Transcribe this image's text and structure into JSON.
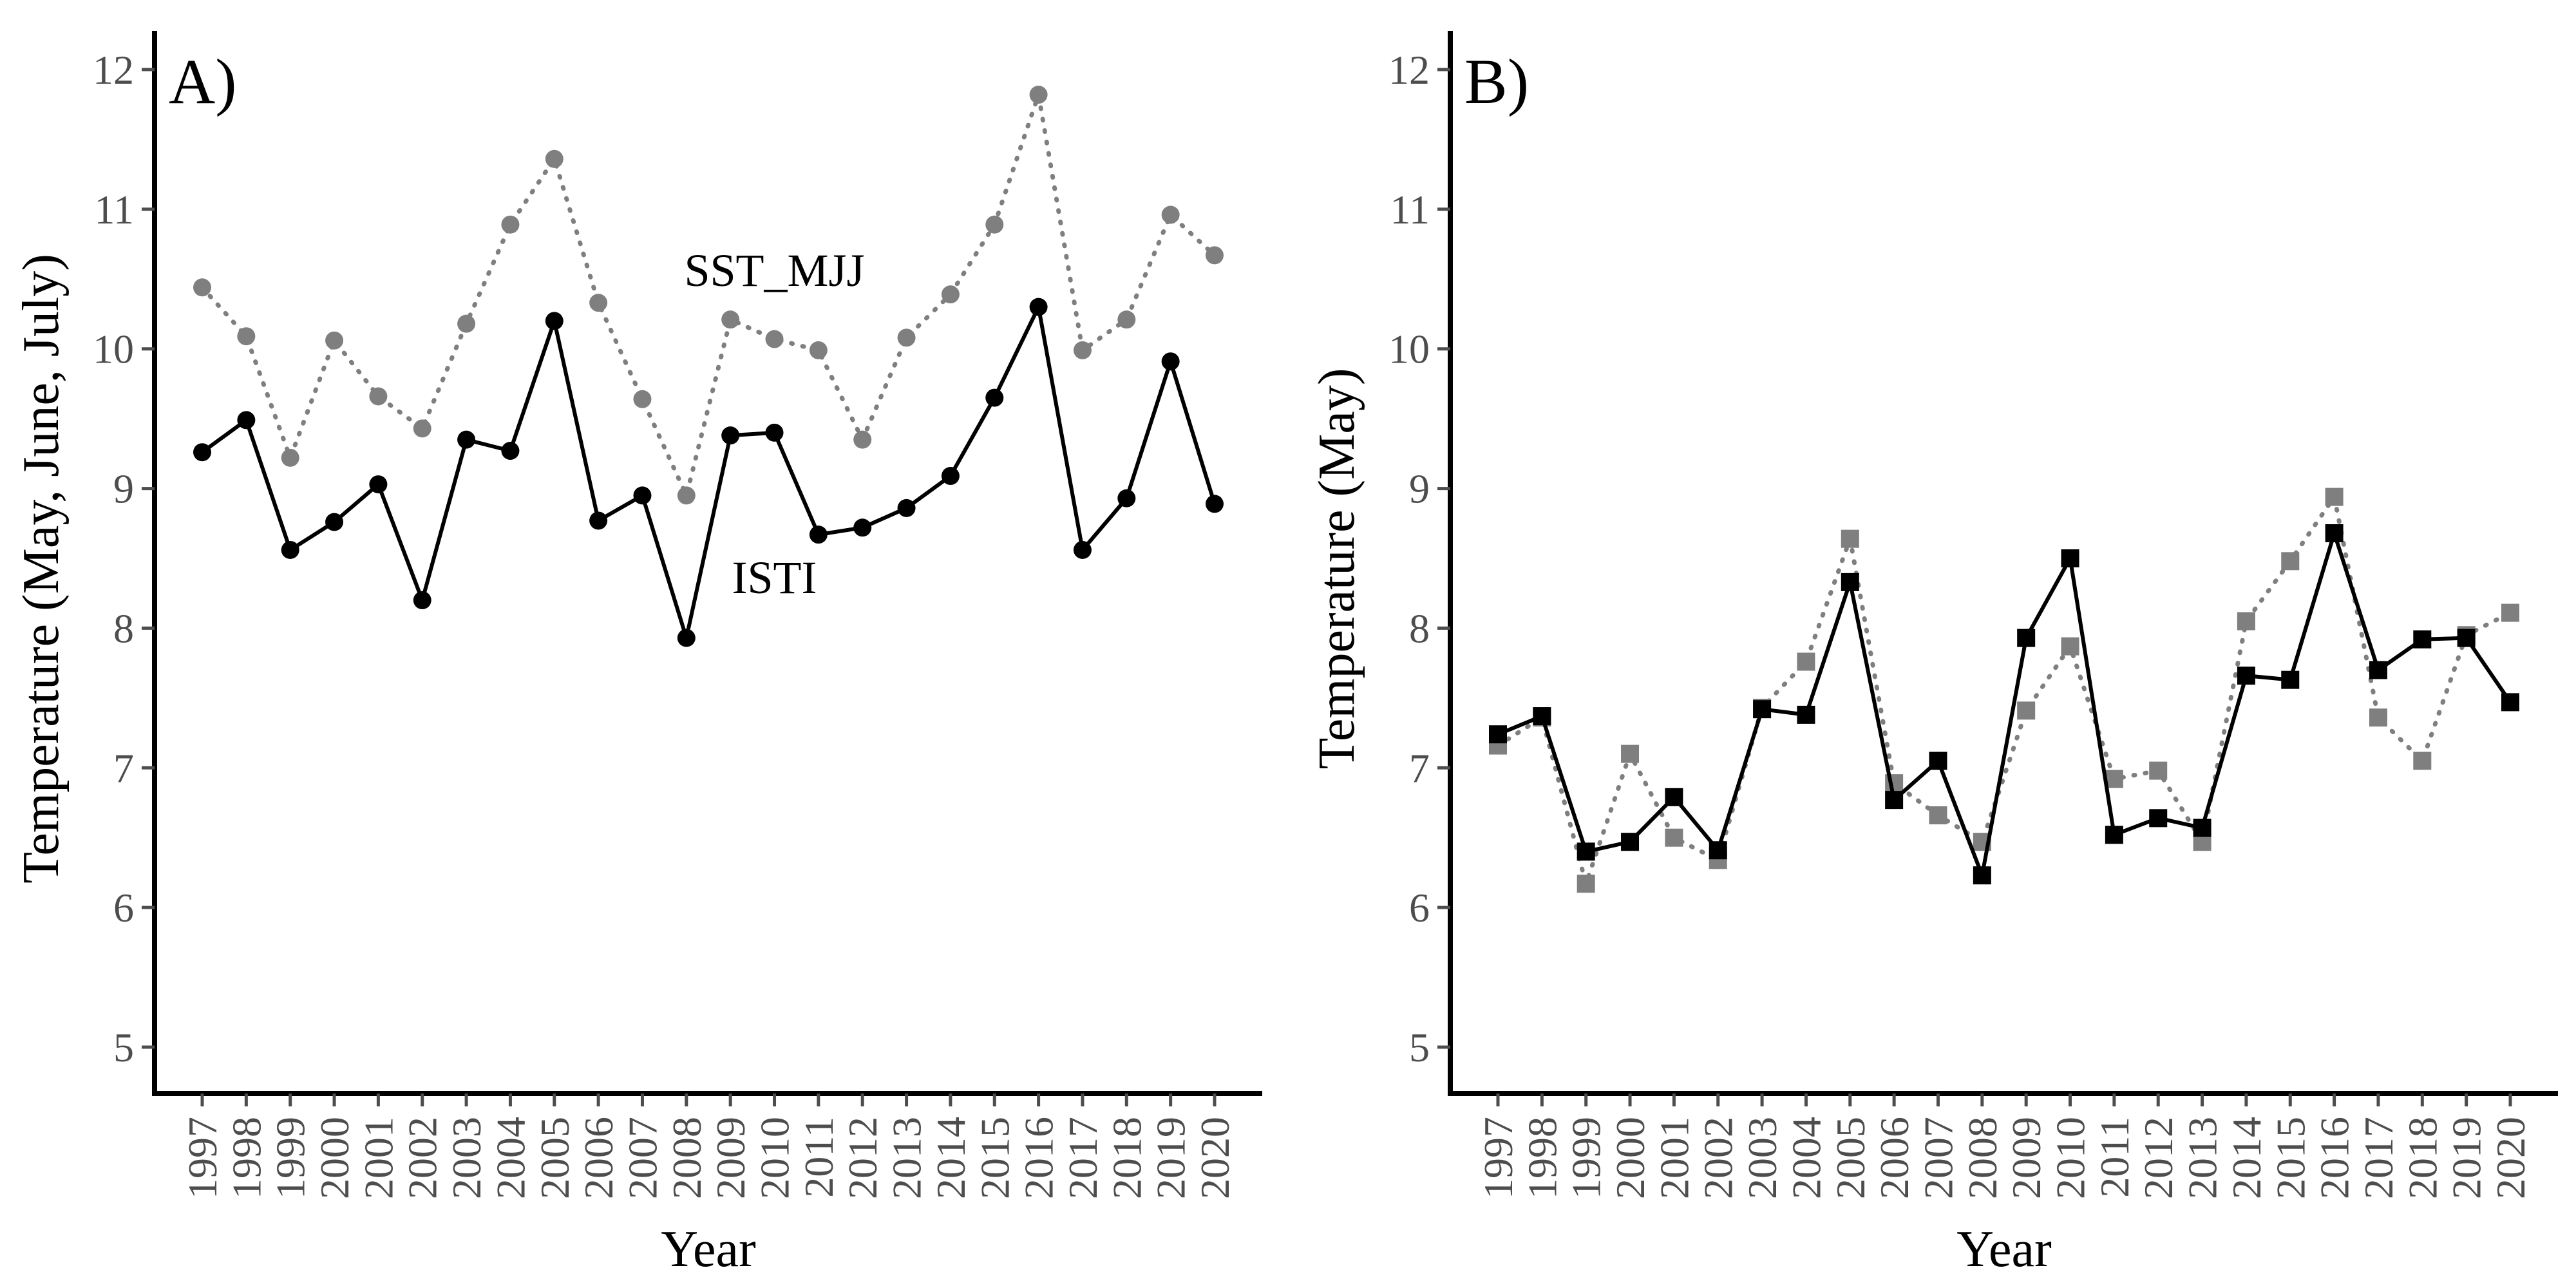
{
  "colors": {
    "background": "#ffffff",
    "axis": "#000000",
    "tick_label": "#4d4d4d",
    "series_isti": "#000000",
    "series_sst": "#7f7f7f"
  },
  "chart_data": [
    {
      "type": "line",
      "panel_label": "A)",
      "xlabel": "Year",
      "ylabel": "Temperature (May, June, July)",
      "categories": [
        "1997",
        "1998",
        "1999",
        "2000",
        "2001",
        "2002",
        "2003",
        "2004",
        "2005",
        "2006",
        "2007",
        "2008",
        "2009",
        "2010",
        "2011",
        "2012",
        "2013",
        "2014",
        "2015",
        "2016",
        "2017",
        "2018",
        "2019",
        "2020"
      ],
      "ylim": [
        5,
        12
      ],
      "yticks": [
        "5",
        "6",
        "7",
        "8",
        "9",
        "10",
        "11",
        "12"
      ],
      "grid": false,
      "marker": "circle",
      "series": [
        {
          "key": "isti",
          "name": "ISTI",
          "style": "solid",
          "color": "#000000",
          "values": [
            9.26,
            9.49,
            8.56,
            8.76,
            9.03,
            8.2,
            9.35,
            9.27,
            10.2,
            8.77,
            8.95,
            7.93,
            9.38,
            9.4,
            8.67,
            8.72,
            8.86,
            9.09,
            9.65,
            10.3,
            8.56,
            8.93,
            9.91,
            8.89
          ]
        },
        {
          "key": "sst",
          "name": "SST_MJJ",
          "style": "dotted",
          "color": "#7f7f7f",
          "values": [
            10.44,
            10.09,
            9.22,
            10.06,
            9.66,
            9.43,
            10.18,
            10.89,
            11.36,
            10.33,
            9.64,
            8.95,
            10.21,
            10.07,
            9.99,
            9.35,
            10.08,
            10.39,
            10.89,
            11.82,
            9.99,
            10.21,
            10.96,
            10.67
          ]
        }
      ],
      "annotations": [
        {
          "text": "SST_MJJ",
          "x": "2010",
          "y": 10.45
        },
        {
          "text": "ISTI",
          "x": "2010",
          "y": 8.25
        }
      ]
    },
    {
      "type": "line",
      "panel_label": "B)",
      "xlabel": "Year",
      "ylabel": "Temperature (May)",
      "categories": [
        "1997",
        "1998",
        "1999",
        "2000",
        "2001",
        "2002",
        "2003",
        "2004",
        "2005",
        "2006",
        "2007",
        "2008",
        "2009",
        "2010",
        "2011",
        "2012",
        "2013",
        "2014",
        "2015",
        "2016",
        "2017",
        "2018",
        "2019",
        "2020"
      ],
      "ylim": [
        5,
        12
      ],
      "yticks": [
        "5",
        "6",
        "7",
        "8",
        "9",
        "10",
        "11",
        "12"
      ],
      "grid": false,
      "marker": "square",
      "series": [
        {
          "key": "isti",
          "style": "solid",
          "color": "#000000",
          "values": [
            7.24,
            7.37,
            6.4,
            6.47,
            6.79,
            6.41,
            7.42,
            7.38,
            8.33,
            6.77,
            7.05,
            6.23,
            7.93,
            8.5,
            6.52,
            6.64,
            6.57,
            7.66,
            7.63,
            8.68,
            7.7,
            7.92,
            7.93,
            7.47
          ]
        },
        {
          "key": "sst",
          "style": "dotted",
          "color": "#7f7f7f",
          "values": [
            7.16,
            7.36,
            6.17,
            7.1,
            6.5,
            6.34,
            7.43,
            7.76,
            8.64,
            6.89,
            6.66,
            6.47,
            7.41,
            7.87,
            6.92,
            6.98,
            6.47,
            8.05,
            8.48,
            8.94,
            7.36,
            7.05,
            7.95,
            8.11
          ]
        }
      ],
      "annotations": []
    }
  ]
}
